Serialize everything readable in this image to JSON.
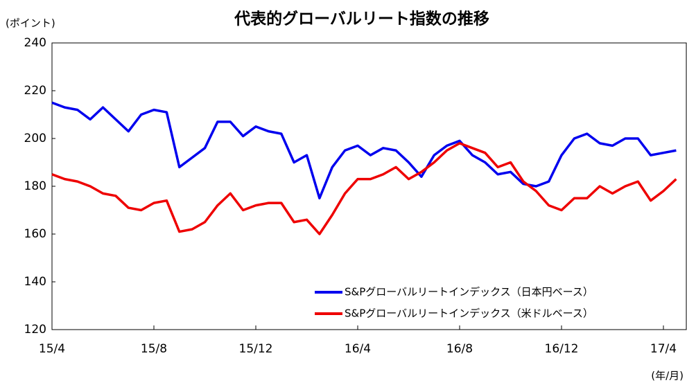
{
  "chart_data": {
    "type": "line",
    "title": "代表的グローバルリート指数の推移",
    "y_label": "(ポイント)",
    "x_label": "(年/月)",
    "categories": [
      "15/4",
      null,
      null,
      null,
      null,
      null,
      null,
      null,
      "15/8",
      null,
      null,
      null,
      null,
      null,
      null,
      null,
      "15/12",
      null,
      null,
      null,
      null,
      null,
      null,
      null,
      "16/4",
      null,
      null,
      null,
      null,
      null,
      null,
      null,
      "16/8",
      null,
      null,
      null,
      null,
      null,
      null,
      null,
      "16/12",
      null,
      null,
      null,
      null,
      null,
      null,
      null,
      "17/4",
      null
    ],
    "series": [
      {
        "name": "S&Pグローバルリートインデックス（日本円ベース）",
        "color": "#0000ee",
        "values": [
          215,
          213,
          212,
          208,
          213,
          208,
          203,
          210,
          212,
          211,
          188,
          192,
          196,
          207,
          207,
          201,
          205,
          203,
          202,
          190,
          193,
          175,
          188,
          195,
          197,
          193,
          196,
          195,
          190,
          184,
          193,
          197,
          199,
          193,
          190,
          185,
          186,
          181,
          180,
          182,
          193,
          200,
          202,
          198,
          197,
          200,
          200,
          193,
          194,
          195
        ]
      },
      {
        "name": "S&Pグローバルリートインデックス（米ドルベース）",
        "color": "#ee0000",
        "values": [
          185,
          183,
          182,
          180,
          177,
          176,
          171,
          170,
          173,
          174,
          161,
          162,
          165,
          172,
          177,
          170,
          172,
          173,
          173,
          165,
          166,
          160,
          168,
          177,
          183,
          183,
          185,
          188,
          183,
          186,
          190,
          195,
          198,
          196,
          194,
          188,
          190,
          182,
          178,
          172,
          170,
          175,
          175,
          180,
          177,
          180,
          182,
          174,
          178,
          183
        ]
      }
    ],
    "ylim": [
      120,
      240
    ],
    "yticks": [
      120,
      140,
      160,
      180,
      200,
      220,
      240
    ],
    "grid": false,
    "legend": "lower right"
  }
}
